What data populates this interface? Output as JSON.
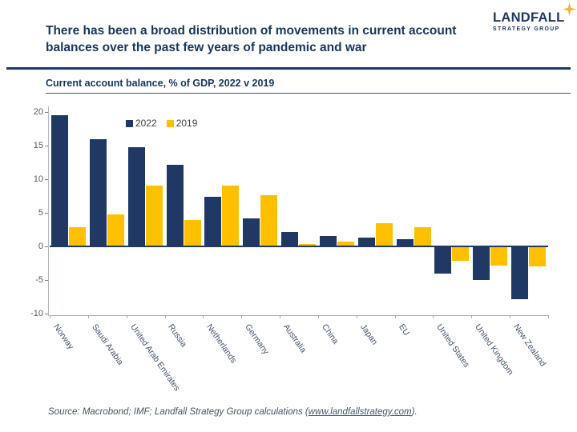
{
  "header": {
    "title_line1": "There has been a broad distribution of movements in current account",
    "title_line2": "balances over the past few years of pandemic and war"
  },
  "logo": {
    "name": "LANDFALL",
    "subtitle": "STRATEGY GROUP",
    "star_color": "#E9B941",
    "text_color": "#1F3864"
  },
  "chart_data": {
    "type": "bar",
    "title": "Current account balance, % of GDP, 2022 v 2019",
    "categories": [
      "Norway",
      "Saudi Arabia",
      "United Arab Emirates",
      "Russia",
      "Netherlands",
      "Germany",
      "Australia",
      "China",
      "Japan",
      "EU",
      "United States",
      "United Kingdom",
      "New Zealand"
    ],
    "series": [
      {
        "name": "2022",
        "color": "#1F3864",
        "values": [
          19.5,
          16.0,
          14.8,
          12.2,
          7.4,
          4.2,
          2.1,
          1.6,
          1.3,
          1.1,
          -4.0,
          -5.0,
          -7.9
        ]
      },
      {
        "name": "2019",
        "color": "#FFC000",
        "values": [
          2.9,
          4.8,
          9.0,
          3.9,
          9.0,
          7.6,
          0.4,
          0.7,
          3.4,
          2.9,
          -2.2,
          -2.8,
          -3.0
        ]
      }
    ],
    "ylim": [
      -10,
      20
    ],
    "yticks": [
      20,
      15,
      10,
      5,
      0,
      -5,
      -10
    ],
    "xlabel": "",
    "ylabel": "",
    "grid": false,
    "legend_position": "top-left-of-plot"
  },
  "source": {
    "prefix": "Source: Macrobond; IMF; Landfall Strategy Group calculations (",
    "link": "www.landfallstrategy.com",
    "suffix": ")."
  }
}
